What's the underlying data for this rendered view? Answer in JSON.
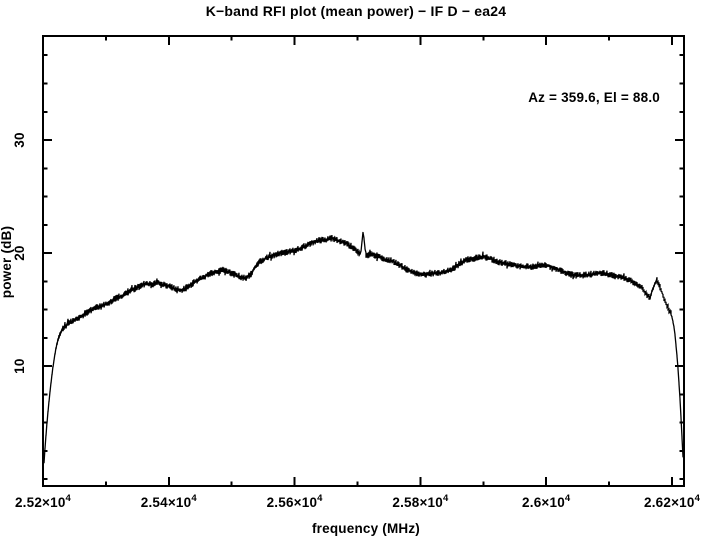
{
  "page": {
    "background": "#ffffff",
    "foreground": "#000000"
  },
  "chart_data": {
    "type": "line",
    "title": "K−band RFI plot (mean power) − IF D − ea24",
    "xlabel": "frequency (MHz)",
    "ylabel": "power (dB)",
    "annotation": "Az = 359.6, El = 88.0",
    "grid": false,
    "legend": false,
    "frame": "box-with-inward-ticks",
    "x_axis": {
      "min": 25200,
      "max": 26219,
      "major_ticks": [
        25200,
        25400,
        25600,
        25800,
        26000,
        26200
      ],
      "major_tick_labels": [
        "2.52×10^4",
        "2.54×10^4",
        "2.56×10^4",
        "2.58×10^4",
        "2.6×10^4",
        "2.62×10^4"
      ],
      "minor_ticks": [
        25300,
        25500,
        25700,
        25900,
        26100
      ]
    },
    "y_axis": {
      "min": -0.6,
      "max": 39.2,
      "major_ticks": [
        10,
        20,
        30
      ],
      "major_tick_labels": [
        "10",
        "20",
        "30"
      ],
      "minor_ticks": [
        0,
        2.5,
        5,
        7.5,
        12.5,
        15,
        17.5,
        22.5,
        25,
        27.5,
        32.5,
        35,
        37.5
      ]
    },
    "series": [
      {
        "name": "mean power spectrum",
        "color": "#000000",
        "noise_halfwidth_db": 0.3,
        "points": [
          [
            25201,
            1.0
          ],
          [
            25203,
            2.6
          ],
          [
            25206,
            4.8
          ],
          [
            25209,
            6.6
          ],
          [
            25212,
            8.2
          ],
          [
            25216,
            10.0
          ],
          [
            25220,
            11.4
          ],
          [
            25225,
            12.6
          ],
          [
            25231,
            13.3
          ],
          [
            25238,
            13.7
          ],
          [
            25247,
            14.0
          ],
          [
            25257,
            14.3
          ],
          [
            25268,
            14.7
          ],
          [
            25280,
            15.1
          ],
          [
            25292,
            15.3
          ],
          [
            25304,
            15.6
          ],
          [
            25316,
            16.0
          ],
          [
            25328,
            16.3
          ],
          [
            25340,
            16.7
          ],
          [
            25352,
            17.0
          ],
          [
            25362,
            17.3
          ],
          [
            25372,
            17.2
          ],
          [
            25382,
            17.4
          ],
          [
            25392,
            17.2
          ],
          [
            25402,
            17.1
          ],
          [
            25412,
            16.8
          ],
          [
            25420,
            16.7
          ],
          [
            25430,
            17.0
          ],
          [
            25440,
            17.4
          ],
          [
            25450,
            17.7
          ],
          [
            25462,
            18.1
          ],
          [
            25474,
            18.3
          ],
          [
            25486,
            18.5
          ],
          [
            25496,
            18.3
          ],
          [
            25506,
            18.1
          ],
          [
            25514,
            17.9
          ],
          [
            25522,
            17.8
          ],
          [
            25530,
            18.1
          ],
          [
            25538,
            18.8
          ],
          [
            25546,
            19.3
          ],
          [
            25556,
            19.6
          ],
          [
            25566,
            19.8
          ],
          [
            25578,
            20.0
          ],
          [
            25590,
            20.1
          ],
          [
            25602,
            20.3
          ],
          [
            25614,
            20.5
          ],
          [
            25626,
            20.9
          ],
          [
            25638,
            21.1
          ],
          [
            25650,
            21.2
          ],
          [
            25660,
            21.3
          ],
          [
            25670,
            21.1
          ],
          [
            25680,
            20.9
          ],
          [
            25690,
            20.6
          ],
          [
            25700,
            20.1
          ],
          [
            25705,
            19.9
          ],
          [
            25709,
            22.0
          ],
          [
            25713,
            19.8
          ],
          [
            25722,
            19.9
          ],
          [
            25732,
            19.7
          ],
          [
            25744,
            19.4
          ],
          [
            25756,
            19.3
          ],
          [
            25768,
            18.9
          ],
          [
            25780,
            18.5
          ],
          [
            25794,
            18.2
          ],
          [
            25808,
            18.1
          ],
          [
            25820,
            18.2
          ],
          [
            25834,
            18.3
          ],
          [
            25848,
            18.5
          ],
          [
            25862,
            19.0
          ],
          [
            25874,
            19.4
          ],
          [
            25888,
            19.6
          ],
          [
            25900,
            19.7
          ],
          [
            25912,
            19.5
          ],
          [
            25924,
            19.2
          ],
          [
            25936,
            19.1
          ],
          [
            25950,
            18.9
          ],
          [
            25964,
            18.8
          ],
          [
            25978,
            18.8
          ],
          [
            25990,
            18.9
          ],
          [
            26002,
            18.9
          ],
          [
            26014,
            18.6
          ],
          [
            26026,
            18.4
          ],
          [
            26040,
            18.1
          ],
          [
            26054,
            18.0
          ],
          [
            26068,
            18.1
          ],
          [
            26082,
            18.2
          ],
          [
            26094,
            18.2
          ],
          [
            26106,
            18.0
          ],
          [
            26118,
            17.9
          ],
          [
            26130,
            17.7
          ],
          [
            26142,
            17.3
          ],
          [
            26152,
            16.9
          ],
          [
            26160,
            16.3
          ],
          [
            26165,
            16.1
          ],
          [
            26170,
            16.9
          ],
          [
            26175,
            17.6
          ],
          [
            26181,
            17.0
          ],
          [
            26187,
            16.0
          ],
          [
            26193,
            15.2
          ],
          [
            26199,
            14.6
          ],
          [
            26204,
            13.2
          ],
          [
            26209,
            10.2
          ],
          [
            26213,
            6.8
          ],
          [
            26216,
            3.5
          ],
          [
            26218,
            1.3
          ]
        ]
      }
    ]
  }
}
